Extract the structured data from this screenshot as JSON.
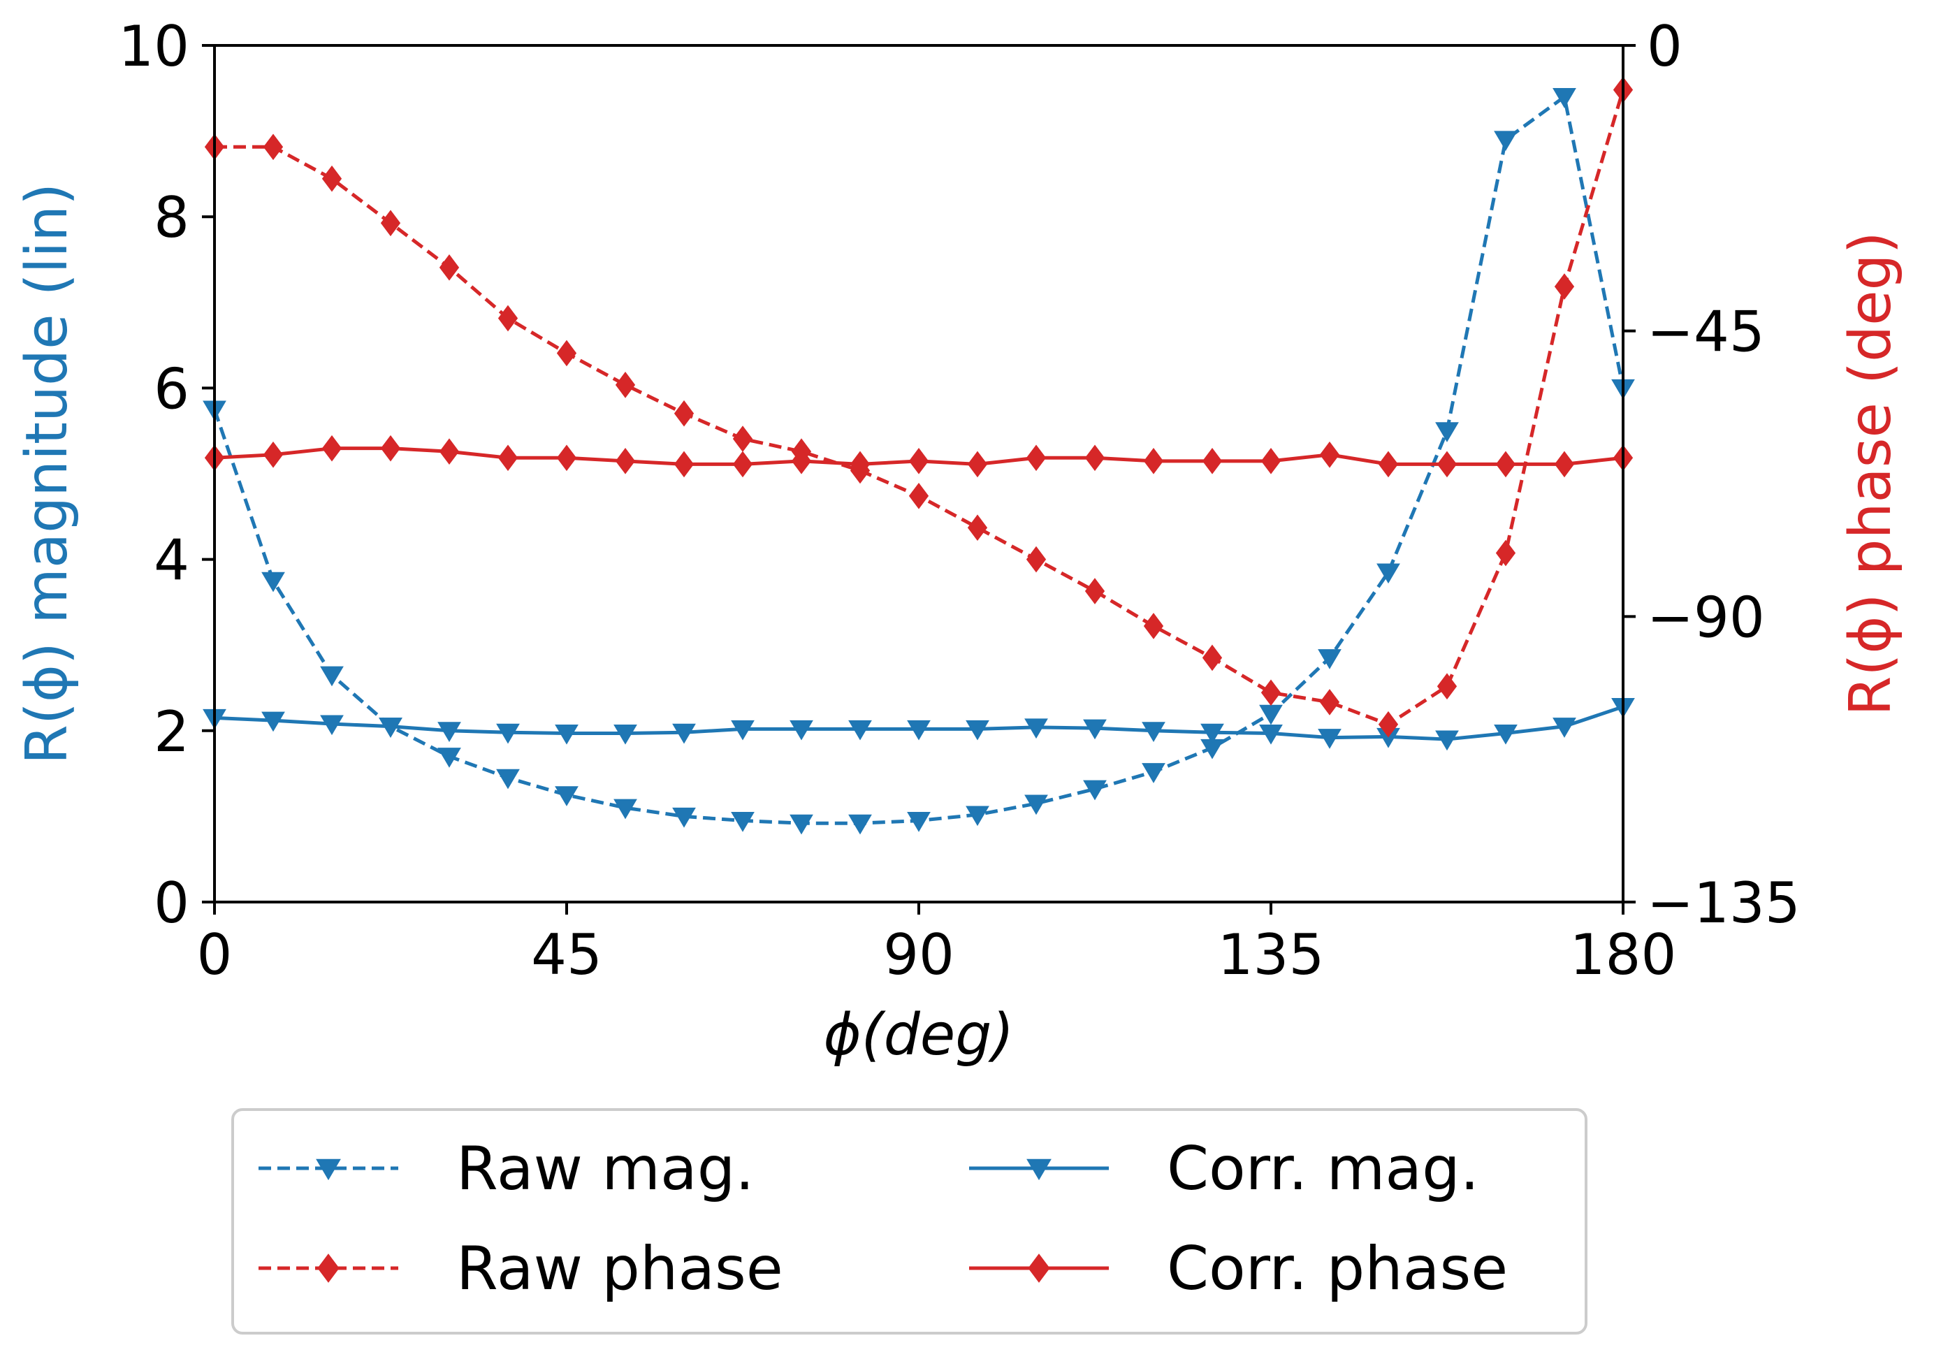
{
  "chart_data": {
    "type": "line",
    "xlabel": "ϕ(deg)",
    "ylabel_left": "R(ϕ) magnitude (lin)",
    "ylabel_right": "R(ϕ) phase (deg)",
    "xlim": [
      0,
      180
    ],
    "ylim_left": [
      0,
      10
    ],
    "ylim_right": [
      -135,
      0
    ],
    "x_ticks": [
      "0",
      "45",
      "90",
      "135",
      "180"
    ],
    "y_left_ticks": [
      "0",
      "2",
      "4",
      "6",
      "8",
      "10"
    ],
    "y_right_ticks": [
      "−135",
      "−90",
      "−45",
      "0"
    ],
    "grid": false,
    "legend_position": "below",
    "colors": {
      "magnitude": "#1f77b4",
      "phase": "#d62728"
    },
    "x": [
      0,
      7.5,
      15,
      22.5,
      30,
      37.5,
      45,
      52.5,
      60,
      67.5,
      75,
      82.5,
      90,
      97.5,
      105,
      112.5,
      120,
      127.5,
      135,
      142.5,
      150,
      157.5,
      165,
      172.5,
      180
    ],
    "series": [
      {
        "name": "Raw mag.",
        "axis": "left",
        "style": "dashed",
        "marker": "triangle-down",
        "color": "#1f77b4",
        "values": [
          5.75,
          3.75,
          2.65,
          2.05,
          1.7,
          1.45,
          1.25,
          1.1,
          1.0,
          0.95,
          0.92,
          0.92,
          0.95,
          1.02,
          1.15,
          1.32,
          1.52,
          1.8,
          2.2,
          2.85,
          3.85,
          5.5,
          8.9,
          9.4,
          6.0
        ]
      },
      {
        "name": "Corr. mag.",
        "axis": "left",
        "style": "solid",
        "marker": "triangle-down",
        "color": "#1f77b4",
        "values": [
          2.15,
          2.12,
          2.08,
          2.05,
          2.0,
          1.98,
          1.97,
          1.97,
          1.98,
          2.02,
          2.02,
          2.02,
          2.02,
          2.02,
          2.04,
          2.03,
          2.0,
          1.98,
          1.97,
          1.92,
          1.93,
          1.9,
          1.97,
          2.05,
          2.28
        ]
      },
      {
        "name": "Raw phase",
        "axis": "right",
        "style": "dashed",
        "marker": "diamond",
        "color": "#d62728",
        "values": [
          -16,
          -16,
          -21,
          -28,
          -35,
          -43,
          -48.5,
          -53.5,
          -58,
          -62,
          -64,
          -67,
          -71,
          -76,
          -81,
          -86,
          -91.5,
          -96.5,
          -102,
          -103.5,
          -107,
          -101,
          -80,
          -38,
          -7
        ]
      },
      {
        "name": "Corr. phase",
        "axis": "right",
        "style": "solid",
        "marker": "diamond",
        "color": "#d62728",
        "values": [
          -65,
          -64.5,
          -63.5,
          -63.5,
          -64,
          -65,
          -65,
          -65.5,
          -66,
          -66,
          -65.5,
          -66,
          -65.5,
          -66,
          -65,
          -65,
          -65.5,
          -65.5,
          -65.5,
          -64.5,
          -66,
          -66,
          -66,
          -66,
          -65
        ]
      }
    ]
  },
  "legend": {
    "items": [
      {
        "label": "Raw mag."
      },
      {
        "label": "Corr. mag."
      },
      {
        "label": "Raw phase"
      },
      {
        "label": "Corr. phase"
      }
    ]
  }
}
